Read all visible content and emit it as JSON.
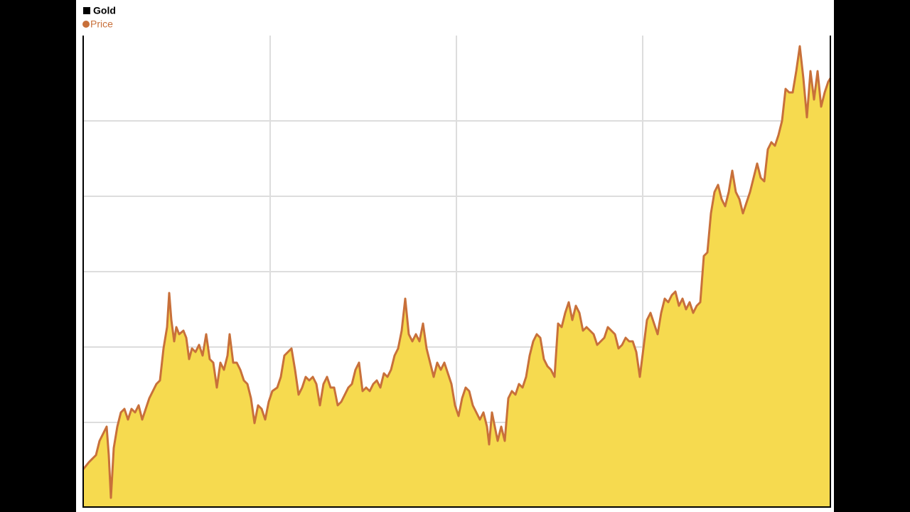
{
  "chart_data": {
    "type": "area",
    "title": "Gold",
    "x": [
      0,
      8,
      18,
      23,
      28,
      33,
      36,
      39,
      43,
      48,
      53,
      58,
      63,
      68,
      73,
      78,
      83,
      88,
      93,
      98,
      103,
      108,
      113,
      118,
      121,
      124,
      128,
      131,
      135,
      141,
      145,
      149,
      153,
      158,
      163,
      168,
      173,
      178,
      183,
      188,
      193,
      198,
      203,
      206,
      211,
      216,
      221,
      226,
      231,
      236,
      241,
      246,
      251,
      256,
      261,
      266,
      273,
      278,
      283,
      288,
      293,
      298,
      303,
      308,
      313,
      318,
      323,
      328,
      333,
      338,
      343,
      348,
      353,
      358,
      363,
      368,
      373,
      378,
      383,
      388,
      393,
      398,
      403,
      408,
      413,
      418,
      423,
      428,
      433,
      438,
      443,
      448,
      453,
      458,
      463,
      468,
      473,
      478,
      483,
      488,
      493,
      498,
      503,
      508,
      513,
      518,
      523,
      528,
      533,
      538,
      543,
      548,
      553,
      558,
      563,
      568,
      571,
      575,
      580,
      583,
      588,
      593,
      598,
      603,
      608,
      613,
      618,
      623,
      628,
      633,
      638,
      643,
      648,
      653,
      658,
      663,
      668,
      673,
      678,
      683,
      688,
      693,
      698,
      703,
      708,
      713,
      718,
      723,
      728,
      733,
      738,
      743,
      748,
      753,
      758,
      763,
      768,
      773,
      778,
      783,
      788,
      793,
      798,
      803,
      808,
      813,
      818,
      823,
      828,
      833,
      838,
      843,
      848,
      853,
      858,
      863,
      868,
      873,
      878,
      883,
      888,
      893,
      898,
      903,
      908,
      913,
      918,
      923,
      928,
      933,
      938,
      943,
      948,
      953,
      958,
      963,
      968,
      973,
      978,
      983,
      988,
      993,
      998,
      1003,
      1008,
      1013,
      1018,
      1023,
      1028,
      1033,
      1038,
      1043,
      1048,
      1051
    ],
    "series": [
      {
        "name": "Price",
        "color": "#c8703a",
        "fill": "#f6da4f",
        "values": [
          53,
          63,
          73,
          93,
          103,
          113,
          73,
          13,
          83,
          113,
          133,
          138,
          123,
          138,
          133,
          143,
          123,
          138,
          153,
          163,
          173,
          178,
          223,
          253,
          301,
          263,
          233,
          253,
          243,
          248,
          238,
          208,
          223,
          218,
          228,
          213,
          243,
          208,
          203,
          168,
          203,
          193,
          213,
          243,
          203,
          203,
          193,
          178,
          173,
          153,
          118,
          143,
          138,
          123,
          148,
          163,
          168,
          183,
          213,
          218,
          223,
          193,
          158,
          168,
          183,
          178,
          183,
          173,
          143,
          173,
          183,
          168,
          168,
          143,
          148,
          158,
          168,
          173,
          193,
          203,
          163,
          168,
          163,
          173,
          178,
          168,
          188,
          183,
          193,
          213,
          223,
          248,
          293,
          243,
          233,
          243,
          233,
          258,
          223,
          203,
          183,
          203,
          193,
          203,
          188,
          173,
          143,
          128,
          153,
          168,
          163,
          143,
          133,
          123,
          133,
          113,
          88,
          133,
          108,
          93,
          113,
          93,
          153,
          163,
          158,
          173,
          168,
          183,
          213,
          233,
          243,
          238,
          208,
          198,
          193,
          183,
          258,
          253,
          273,
          288,
          263,
          283,
          273,
          248,
          253,
          248,
          243,
          228,
          233,
          238,
          253,
          248,
          243,
          223,
          228,
          238,
          233,
          233,
          218,
          183,
          223,
          263,
          273,
          258,
          243,
          273,
          293,
          288,
          298,
          303,
          283,
          293,
          278,
          288,
          273,
          283,
          288,
          353,
          358,
          413,
          443,
          453,
          433,
          423,
          443,
          473,
          443,
          433,
          413,
          428,
          443,
          463,
          483,
          463,
          458,
          503,
          513,
          508,
          523,
          543,
          588,
          583,
          583,
          613,
          648,
          603,
          548,
          613,
          573,
          613,
          563,
          583,
          598,
          603
        ]
      }
    ],
    "xlim": [
      0,
      1051
    ],
    "xticks": [
      263,
      525,
      787
    ],
    "ylim": [
      0,
      663
    ],
    "yticks": [
      119,
      225,
      331,
      437,
      543
    ],
    "grid": true
  }
}
